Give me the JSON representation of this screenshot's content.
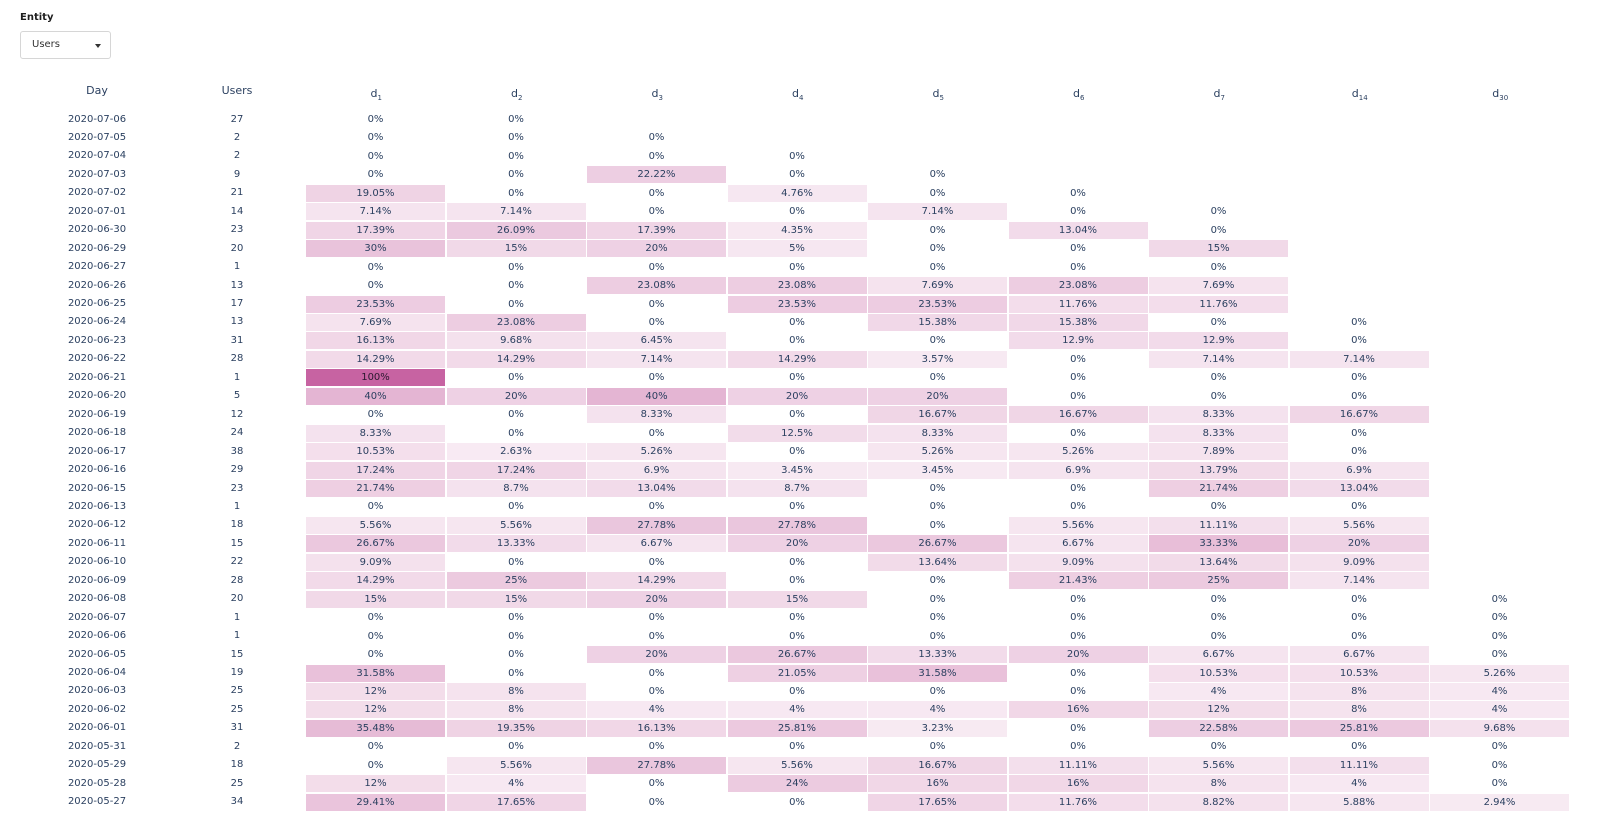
{
  "filter": {
    "label": "Entity",
    "selected": "Users",
    "caret_icon": "caret-down-icon"
  },
  "table": {
    "headers": [
      "Day",
      "Users",
      "d1",
      "d2",
      "d3",
      "d4",
      "d5",
      "d6",
      "d7",
      "d14",
      "d30"
    ],
    "header_parts": [
      {
        "base": "Day",
        "sub": ""
      },
      {
        "base": "Users",
        "sub": ""
      },
      {
        "base": "d",
        "sub": "1"
      },
      {
        "base": "d",
        "sub": "2"
      },
      {
        "base": "d",
        "sub": "3"
      },
      {
        "base": "d",
        "sub": "4"
      },
      {
        "base": "d",
        "sub": "5"
      },
      {
        "base": "d",
        "sub": "6"
      },
      {
        "base": "d",
        "sub": "7"
      },
      {
        "base": "d",
        "sub": "14"
      },
      {
        "base": "d",
        "sub": "30"
      }
    ],
    "heat_color": "#c2569a",
    "rows": [
      {
        "day": "2020-07-06",
        "users": "27",
        "values": [
          "0%",
          "0%"
        ]
      },
      {
        "day": "2020-07-05",
        "users": "2",
        "values": [
          "0%",
          "0%",
          "0%"
        ]
      },
      {
        "day": "2020-07-04",
        "users": "2",
        "values": [
          "0%",
          "0%",
          "0%",
          "0%"
        ]
      },
      {
        "day": "2020-07-03",
        "users": "9",
        "values": [
          "0%",
          "0%",
          "22.22%",
          "0%",
          "0%"
        ]
      },
      {
        "day": "2020-07-02",
        "users": "21",
        "values": [
          "19.05%",
          "0%",
          "0%",
          "4.76%",
          "0%",
          "0%"
        ]
      },
      {
        "day": "2020-07-01",
        "users": "14",
        "values": [
          "7.14%",
          "7.14%",
          "0%",
          "0%",
          "7.14%",
          "0%",
          "0%"
        ]
      },
      {
        "day": "2020-06-30",
        "users": "23",
        "values": [
          "17.39%",
          "26.09%",
          "17.39%",
          "4.35%",
          "0%",
          "13.04%",
          "0%"
        ]
      },
      {
        "day": "2020-06-29",
        "users": "20",
        "values": [
          "30%",
          "15%",
          "20%",
          "5%",
          "0%",
          "0%",
          "15%"
        ]
      },
      {
        "day": "2020-06-27",
        "users": "1",
        "values": [
          "0%",
          "0%",
          "0%",
          "0%",
          "0%",
          "0%",
          "0%"
        ]
      },
      {
        "day": "2020-06-26",
        "users": "13",
        "values": [
          "0%",
          "0%",
          "23.08%",
          "23.08%",
          "7.69%",
          "23.08%",
          "7.69%"
        ]
      },
      {
        "day": "2020-06-25",
        "users": "17",
        "values": [
          "23.53%",
          "0%",
          "0%",
          "23.53%",
          "23.53%",
          "11.76%",
          "11.76%"
        ]
      },
      {
        "day": "2020-06-24",
        "users": "13",
        "values": [
          "7.69%",
          "23.08%",
          "0%",
          "0%",
          "15.38%",
          "15.38%",
          "0%",
          "0%"
        ]
      },
      {
        "day": "2020-06-23",
        "users": "31",
        "values": [
          "16.13%",
          "9.68%",
          "6.45%",
          "0%",
          "0%",
          "12.9%",
          "12.9%",
          "0%"
        ]
      },
      {
        "day": "2020-06-22",
        "users": "28",
        "values": [
          "14.29%",
          "14.29%",
          "7.14%",
          "14.29%",
          "3.57%",
          "0%",
          "7.14%",
          "7.14%"
        ]
      },
      {
        "day": "2020-06-21",
        "users": "1",
        "values": [
          "100%",
          "0%",
          "0%",
          "0%",
          "0%",
          "0%",
          "0%",
          "0%"
        ]
      },
      {
        "day": "2020-06-20",
        "users": "5",
        "values": [
          "40%",
          "20%",
          "40%",
          "20%",
          "20%",
          "0%",
          "0%",
          "0%"
        ]
      },
      {
        "day": "2020-06-19",
        "users": "12",
        "values": [
          "0%",
          "0%",
          "8.33%",
          "0%",
          "16.67%",
          "16.67%",
          "8.33%",
          "16.67%"
        ]
      },
      {
        "day": "2020-06-18",
        "users": "24",
        "values": [
          "8.33%",
          "0%",
          "0%",
          "12.5%",
          "8.33%",
          "0%",
          "8.33%",
          "0%"
        ]
      },
      {
        "day": "2020-06-17",
        "users": "38",
        "values": [
          "10.53%",
          "2.63%",
          "5.26%",
          "0%",
          "5.26%",
          "5.26%",
          "7.89%",
          "0%"
        ]
      },
      {
        "day": "2020-06-16",
        "users": "29",
        "values": [
          "17.24%",
          "17.24%",
          "6.9%",
          "3.45%",
          "3.45%",
          "6.9%",
          "13.79%",
          "6.9%"
        ]
      },
      {
        "day": "2020-06-15",
        "users": "23",
        "values": [
          "21.74%",
          "8.7%",
          "13.04%",
          "8.7%",
          "0%",
          "0%",
          "21.74%",
          "13.04%"
        ]
      },
      {
        "day": "2020-06-13",
        "users": "1",
        "values": [
          "0%",
          "0%",
          "0%",
          "0%",
          "0%",
          "0%",
          "0%",
          "0%"
        ]
      },
      {
        "day": "2020-06-12",
        "users": "18",
        "values": [
          "5.56%",
          "5.56%",
          "27.78%",
          "27.78%",
          "0%",
          "5.56%",
          "11.11%",
          "5.56%"
        ]
      },
      {
        "day": "2020-06-11",
        "users": "15",
        "values": [
          "26.67%",
          "13.33%",
          "6.67%",
          "20%",
          "26.67%",
          "6.67%",
          "33.33%",
          "20%"
        ]
      },
      {
        "day": "2020-06-10",
        "users": "22",
        "values": [
          "9.09%",
          "0%",
          "0%",
          "0%",
          "13.64%",
          "9.09%",
          "13.64%",
          "9.09%"
        ]
      },
      {
        "day": "2020-06-09",
        "users": "28",
        "values": [
          "14.29%",
          "25%",
          "14.29%",
          "0%",
          "0%",
          "21.43%",
          "25%",
          "7.14%"
        ]
      },
      {
        "day": "2020-06-08",
        "users": "20",
        "values": [
          "15%",
          "15%",
          "20%",
          "15%",
          "0%",
          "0%",
          "0%",
          "0%",
          "0%"
        ]
      },
      {
        "day": "2020-06-07",
        "users": "1",
        "values": [
          "0%",
          "0%",
          "0%",
          "0%",
          "0%",
          "0%",
          "0%",
          "0%",
          "0%"
        ]
      },
      {
        "day": "2020-06-06",
        "users": "1",
        "values": [
          "0%",
          "0%",
          "0%",
          "0%",
          "0%",
          "0%",
          "0%",
          "0%",
          "0%"
        ]
      },
      {
        "day": "2020-06-05",
        "users": "15",
        "values": [
          "0%",
          "0%",
          "20%",
          "26.67%",
          "13.33%",
          "20%",
          "6.67%",
          "6.67%",
          "0%"
        ]
      },
      {
        "day": "2020-06-04",
        "users": "19",
        "values": [
          "31.58%",
          "0%",
          "0%",
          "21.05%",
          "31.58%",
          "0%",
          "10.53%",
          "10.53%",
          "5.26%"
        ]
      },
      {
        "day": "2020-06-03",
        "users": "25",
        "values": [
          "12%",
          "8%",
          "0%",
          "0%",
          "0%",
          "0%",
          "4%",
          "8%",
          "4%"
        ]
      },
      {
        "day": "2020-06-02",
        "users": "25",
        "values": [
          "12%",
          "8%",
          "4%",
          "4%",
          "4%",
          "16%",
          "12%",
          "8%",
          "4%"
        ]
      },
      {
        "day": "2020-06-01",
        "users": "31",
        "values": [
          "35.48%",
          "19.35%",
          "16.13%",
          "25.81%",
          "3.23%",
          "0%",
          "22.58%",
          "25.81%",
          "9.68%"
        ]
      },
      {
        "day": "2020-05-31",
        "users": "2",
        "values": [
          "0%",
          "0%",
          "0%",
          "0%",
          "0%",
          "0%",
          "0%",
          "0%",
          "0%"
        ]
      },
      {
        "day": "2020-05-29",
        "users": "18",
        "values": [
          "0%",
          "5.56%",
          "27.78%",
          "5.56%",
          "16.67%",
          "11.11%",
          "5.56%",
          "11.11%",
          "0%"
        ]
      },
      {
        "day": "2020-05-28",
        "users": "25",
        "values": [
          "12%",
          "4%",
          "0%",
          "24%",
          "16%",
          "16%",
          "8%",
          "4%",
          "0%"
        ]
      },
      {
        "day": "2020-05-27",
        "users": "34",
        "values": [
          "29.41%",
          "17.65%",
          "0%",
          "0%",
          "17.65%",
          "11.76%",
          "8.82%",
          "5.88%",
          "2.94%"
        ]
      }
    ]
  }
}
